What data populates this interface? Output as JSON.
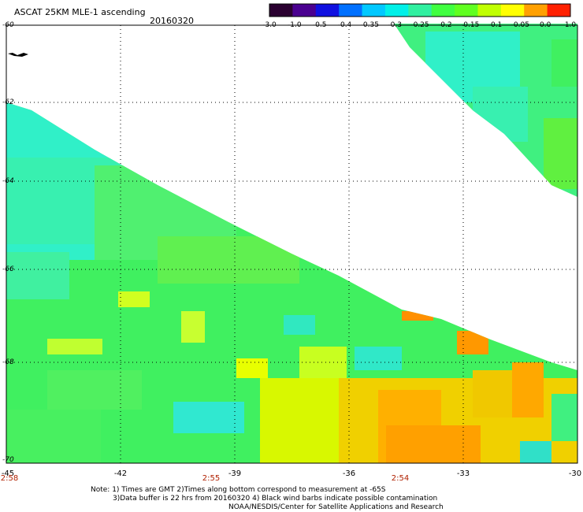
{
  "header": {
    "title": "ASCAT 25KM MLE-1 ascending",
    "date": "20160320"
  },
  "colorbar": {
    "labels": [
      "-3.0",
      "-1.0",
      "-0.5",
      "-0.4",
      "-0.35",
      "-0.3",
      "-0.25",
      "-0.2",
      "-0.15",
      "-0.1",
      "-0.05",
      "0.0",
      "1.0"
    ],
    "colors": [
      "#2a0030",
      "#4a0090",
      "#1010e0",
      "#0070ff",
      "#00c8ff",
      "#00f0e8",
      "#30f0a0",
      "#40ff40",
      "#60ff20",
      "#c0ff00",
      "#ffff00",
      "#ffa000",
      "#ff2000"
    ]
  },
  "axes": {
    "lat_labels": [
      "-60",
      "-62",
      "-64",
      "-66",
      "-68",
      "-70"
    ],
    "lon_labels": [
      "-45",
      "-42",
      "-39",
      "-36",
      "-33",
      "-30"
    ],
    "times": [
      "2:58",
      "2:55",
      "2:54"
    ]
  },
  "notes": {
    "line1": "Note: 1) Times are GMT 2)Times along bottom correspond to measurement at -65S",
    "line2": "3)Data buffer is 22 hrs from 20160320 4) Black wind barbs indicate possible contamination",
    "line3": "NOAA/NESDIS/Center for Satellite Applications and Research"
  }
}
